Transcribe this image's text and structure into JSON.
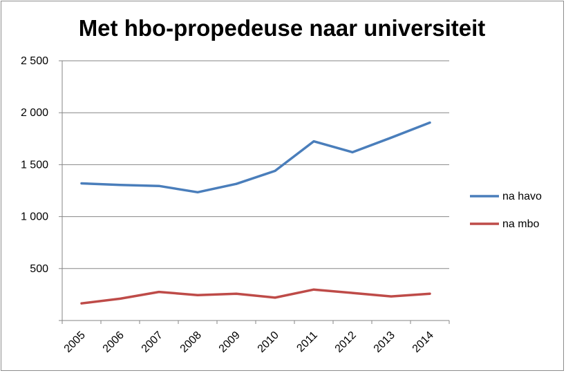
{
  "chart_data": {
    "type": "line",
    "title": "Met hbo-propedeuse naar universiteit",
    "xlabel": "",
    "ylabel": "",
    "categories": [
      "2005",
      "2006",
      "2007",
      "2008",
      "2009",
      "2010",
      "2011",
      "2012",
      "2013",
      "2014"
    ],
    "ylim": [
      0,
      2500
    ],
    "yticks": [
      0,
      500,
      1000,
      1500,
      2000,
      2500
    ],
    "ytick_labels": [
      "",
      "500",
      "1 000",
      "1 500",
      "2 000",
      "2 500"
    ],
    "grid": true,
    "legend_position": "right",
    "series": [
      {
        "name": "na havo",
        "color": "#4a7ebb",
        "values": [
          1320,
          1305,
          1295,
          1235,
          1315,
          1440,
          1725,
          1620,
          1760,
          1905
        ]
      },
      {
        "name": "na mbo",
        "color": "#be4b48",
        "values": [
          165,
          210,
          275,
          245,
          258,
          220,
          298,
          265,
          232,
          258
        ]
      }
    ]
  }
}
